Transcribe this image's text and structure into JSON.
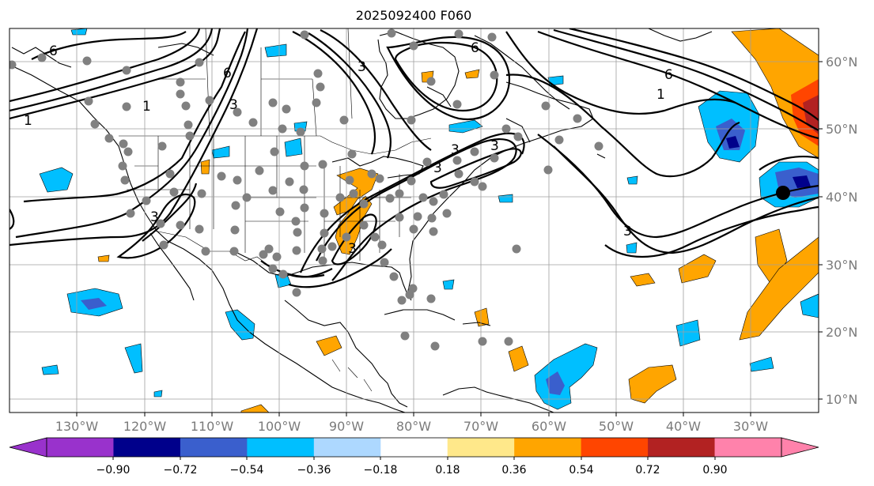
{
  "title": "2025092400 F060",
  "map": {
    "lon_labels": [
      "130°W",
      "120°W",
      "110°W",
      "100°W",
      "90°W",
      "80°W",
      "70°W",
      "60°W",
      "50°W",
      "40°W",
      "30°W"
    ],
    "lat_labels": [
      "60°N",
      "50°N",
      "40°N",
      "30°N",
      "20°N",
      "10°N"
    ],
    "contour_labels": [
      "6",
      "6",
      "6",
      "6",
      "3",
      "3",
      "3",
      "3",
      "3",
      "3",
      "3",
      "3",
      "1",
      "1",
      "1"
    ],
    "marker": {
      "label": "",
      "color": "#000000"
    },
    "station_color": "#808080"
  },
  "colorbar": {
    "levels": [
      "−0.90",
      "−0.72",
      "−0.54",
      "−0.36",
      "−0.18",
      "0.18",
      "0.36",
      "0.54",
      "0.72",
      "0.90"
    ],
    "colors": [
      "#9932cc",
      "#00008b",
      "#3a5fcd",
      "#00bfff",
      "#add8ff",
      "#ffffff",
      "#ffe88a",
      "#ffa500",
      "#ff4500",
      "#b22222",
      "#ff82ab"
    ]
  }
}
